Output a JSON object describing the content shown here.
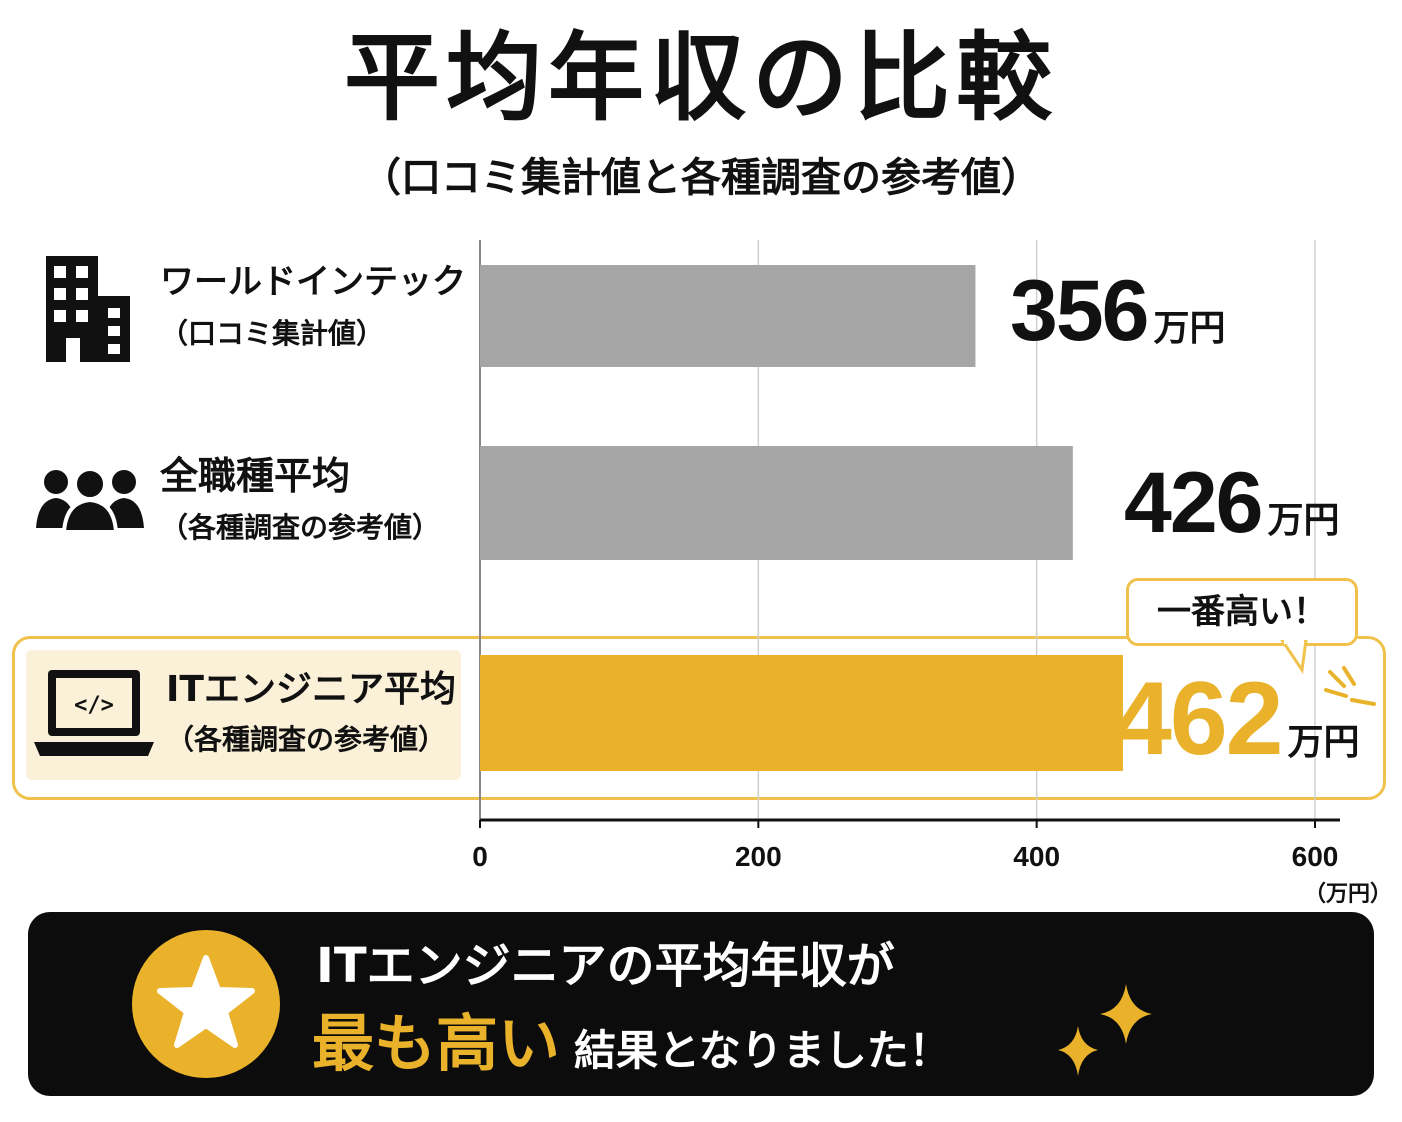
{
  "title": "平均年収の比較",
  "subtitle": "（口コミ集計値と各種調査の参考値）",
  "rows": [
    {
      "label": "ワールドインテック",
      "sub": "（口コミ集計値）",
      "icon": "building-icon",
      "value_num": "356",
      "unit": "万円"
    },
    {
      "label": "全職種平均",
      "sub": "（各種調査の参考値）",
      "icon": "people-icon",
      "value_num": "426",
      "unit": "万円"
    },
    {
      "label": "ITエンジニア平均",
      "sub": "（各種調査の参考値）",
      "icon": "laptop-code-icon",
      "value_num": "462",
      "unit": "万円"
    }
  ],
  "callout": "一番高い！",
  "axis_unit": "（万円）",
  "banner": {
    "line1": "ITエンジニアの平均年収が",
    "emphasis": "最も高い",
    "rest": "結果となりました！"
  },
  "colors": {
    "gray_bar": "#a6a6a6",
    "highlight": "#e9b22a",
    "frame": "#f0c24b"
  },
  "chart_data": {
    "type": "bar",
    "orientation": "horizontal",
    "categories": [
      "ワールドインテック（口コミ集計値）",
      "全職種平均（各種調査の参考値）",
      "ITエンジニア平均（各種調査の参考値）"
    ],
    "values": [
      356,
      426,
      462
    ],
    "xlim": [
      0,
      600
    ],
    "xticks": [
      0,
      200,
      400,
      600
    ],
    "xlabel": "（万円）",
    "grid": true,
    "highlight_index": 2
  }
}
